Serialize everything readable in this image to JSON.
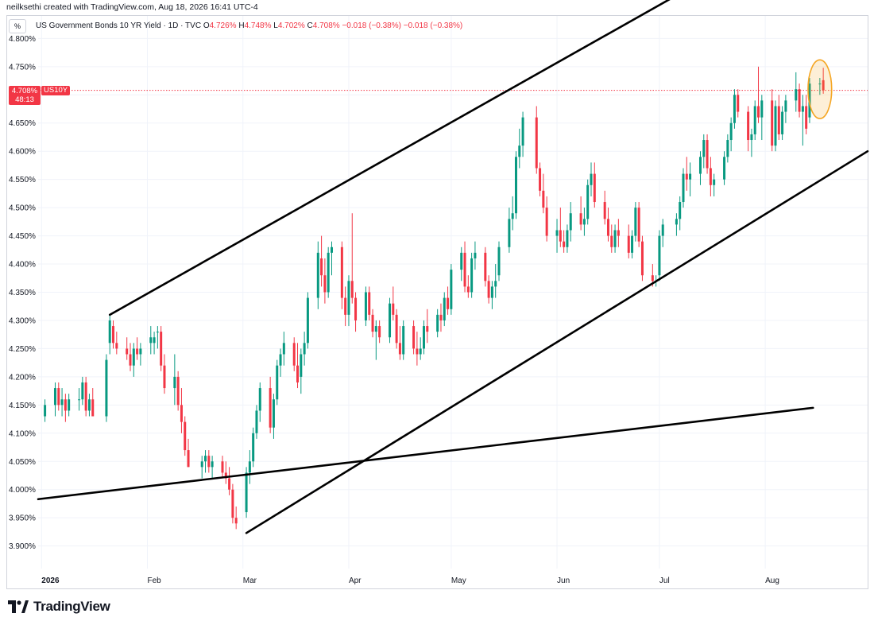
{
  "header": {
    "credit": "neilksethi created with TradingView.com, Aug 18, 2026 16:41 UTC-4"
  },
  "unit_label": "%",
  "legend": {
    "title": "US Government Bonds 10 YR Yield · 1D · TVC",
    "o_key": "O",
    "o_val": "4.726%",
    "h_key": "H",
    "h_val": "4.748%",
    "l_key": "L",
    "l_val": "4.702%",
    "c_key": "C",
    "c_val": "4.708%",
    "chg1": "−0.018 (−0.38%)",
    "chg2": "−0.018 (−0.38%)"
  },
  "price_tag": {
    "value": "4.708%",
    "countdown": "48:13",
    "symbol": "US10Y",
    "level": 4.708
  },
  "footer": {
    "brand": "TradingView"
  },
  "colors": {
    "up": "#089981",
    "down": "#f23645",
    "highlight": "#f5a623",
    "line": "#000000",
    "grid": "#f0f3fa"
  },
  "chart_data": {
    "type": "candlestick",
    "y_ticks": [
      "4.800%",
      "4.750%",
      "4.700%",
      "4.650%",
      "4.600%",
      "4.550%",
      "4.500%",
      "4.450%",
      "4.400%",
      "4.350%",
      "4.300%",
      "4.250%",
      "4.200%",
      "4.150%",
      "4.100%",
      "4.050%",
      "4.000%",
      "3.950%",
      "3.900%"
    ],
    "y_tick_values": [
      4.8,
      4.75,
      4.7,
      4.65,
      4.6,
      4.55,
      4.5,
      4.45,
      4.4,
      4.35,
      4.3,
      4.25,
      4.2,
      4.15,
      4.1,
      4.05,
      4.0,
      3.95,
      3.9
    ],
    "ylim": [
      3.86,
      4.84
    ],
    "x_labels": [
      {
        "label": "2026",
        "date": "2026-01-01",
        "bold": true
      },
      {
        "label": "Feb",
        "date": "2026-02-01",
        "bold": false
      },
      {
        "label": "Mar",
        "date": "2026-03-01",
        "bold": false
      },
      {
        "label": "Apr",
        "date": "2026-04-01",
        "bold": false
      },
      {
        "label": "May",
        "date": "2026-05-01",
        "bold": false
      },
      {
        "label": "Jun",
        "date": "2026-06-01",
        "bold": false
      },
      {
        "label": "Jul",
        "date": "2026-07-01",
        "bold": false
      },
      {
        "label": "Aug",
        "date": "2026-08-01",
        "bold": false
      }
    ],
    "xlim": [
      "2025-12-31",
      "2026-08-31"
    ],
    "candles": [
      [
        "2026-01-02",
        4.13,
        4.16,
        4.12,
        4.15
      ],
      [
        "2026-01-05",
        4.15,
        4.19,
        4.13,
        4.18
      ],
      [
        "2026-01-06",
        4.18,
        4.19,
        4.14,
        4.15
      ],
      [
        "2026-01-07",
        4.15,
        4.18,
        4.13,
        4.16
      ],
      [
        "2026-01-08",
        4.16,
        4.17,
        4.12,
        4.14
      ],
      [
        "2026-01-09",
        4.14,
        4.17,
        4.13,
        4.16
      ],
      [
        "2026-01-12",
        4.16,
        4.18,
        4.14,
        4.16
      ],
      [
        "2026-01-13",
        4.16,
        4.2,
        4.15,
        4.19
      ],
      [
        "2026-01-14",
        4.19,
        4.2,
        4.13,
        4.14
      ],
      [
        "2026-01-15",
        4.14,
        4.17,
        4.13,
        4.16
      ],
      [
        "2026-01-16",
        4.16,
        4.18,
        4.13,
        4.13
      ],
      [
        "2026-01-20",
        4.13,
        4.24,
        4.12,
        4.23
      ],
      [
        "2026-01-21",
        4.26,
        4.31,
        4.24,
        4.3
      ],
      [
        "2026-01-22",
        4.29,
        4.3,
        4.25,
        4.26
      ],
      [
        "2026-01-23",
        4.26,
        4.28,
        4.24,
        4.25
      ],
      [
        "2026-01-26",
        4.25,
        4.27,
        4.23,
        4.24
      ],
      [
        "2026-01-27",
        4.24,
        4.26,
        4.21,
        4.22
      ],
      [
        "2026-01-28",
        4.22,
        4.26,
        4.2,
        4.25
      ],
      [
        "2026-01-29",
        4.25,
        4.27,
        4.23,
        4.24
      ],
      [
        "2026-01-30",
        4.24,
        4.26,
        4.22,
        4.25
      ],
      [
        "2026-02-02",
        4.26,
        4.29,
        4.24,
        4.27
      ],
      [
        "2026-02-03",
        4.26,
        4.28,
        4.24,
        4.27
      ],
      [
        "2026-02-04",
        4.28,
        4.29,
        4.25,
        4.28
      ],
      [
        "2026-02-05",
        4.28,
        4.29,
        4.21,
        4.22
      ],
      [
        "2026-02-06",
        4.22,
        4.24,
        4.17,
        4.18
      ],
      [
        "2026-02-09",
        4.18,
        4.24,
        4.15,
        4.2
      ],
      [
        "2026-02-10",
        4.2,
        4.21,
        4.14,
        4.15
      ],
      [
        "2026-02-11",
        4.15,
        4.18,
        4.1,
        4.12
      ],
      [
        "2026-02-12",
        4.12,
        4.13,
        4.06,
        4.07
      ],
      [
        "2026-02-13",
        4.07,
        4.09,
        4.04,
        4.04
      ],
      [
        "2026-02-17",
        4.04,
        4.06,
        4.02,
        4.05
      ],
      [
        "2026-02-18",
        4.05,
        4.07,
        4.03,
        4.06
      ],
      [
        "2026-02-19",
        4.06,
        4.07,
        4.03,
        4.04
      ],
      [
        "2026-02-20",
        4.04,
        4.06,
        4.02,
        4.05
      ],
      [
        "2026-02-23",
        4.05,
        4.06,
        4.02,
        4.03
      ],
      [
        "2026-02-24",
        4.03,
        4.05,
        4.01,
        4.02
      ],
      [
        "2026-02-25",
        4.02,
        4.04,
        3.99,
        4.0
      ],
      [
        "2026-02-26",
        4.0,
        4.01,
        3.94,
        3.95
      ],
      [
        "2026-02-27",
        3.95,
        3.97,
        3.93,
        3.94
      ],
      [
        "2026-03-02",
        3.96,
        4.04,
        3.95,
        4.03
      ],
      [
        "2026-03-03",
        4.03,
        4.07,
        4.01,
        4.05
      ],
      [
        "2026-03-04",
        4.05,
        4.11,
        4.04,
        4.1
      ],
      [
        "2026-03-05",
        4.1,
        4.15,
        4.09,
        4.14
      ],
      [
        "2026-03-06",
        4.14,
        4.19,
        4.12,
        4.18
      ],
      [
        "2026-03-09",
        4.18,
        4.2,
        4.1,
        4.11
      ],
      [
        "2026-03-10",
        4.11,
        4.17,
        4.09,
        4.16
      ],
      [
        "2026-03-11",
        4.16,
        4.23,
        4.15,
        4.22
      ],
      [
        "2026-03-12",
        4.22,
        4.25,
        4.2,
        4.24
      ],
      [
        "2026-03-13",
        4.24,
        4.28,
        4.22,
        4.26
      ],
      [
        "2026-03-16",
        4.26,
        4.27,
        4.21,
        4.22
      ],
      [
        "2026-03-17",
        4.22,
        4.26,
        4.18,
        4.19
      ],
      [
        "2026-03-18",
        4.2,
        4.25,
        4.17,
        4.24
      ],
      [
        "2026-03-19",
        4.24,
        4.28,
        4.22,
        4.26
      ],
      [
        "2026-03-20",
        4.26,
        4.35,
        4.25,
        4.34
      ],
      [
        "2026-03-23",
        4.34,
        4.44,
        4.32,
        4.42
      ],
      [
        "2026-03-24",
        4.41,
        4.45,
        4.36,
        4.38
      ],
      [
        "2026-03-25",
        4.38,
        4.41,
        4.33,
        4.35
      ],
      [
        "2026-03-26",
        4.35,
        4.43,
        4.34,
        4.42
      ],
      [
        "2026-03-27",
        4.42,
        4.44,
        4.38,
        4.43
      ],
      [
        "2026-03-30",
        4.43,
        4.44,
        4.32,
        4.34
      ],
      [
        "2026-03-31",
        4.34,
        4.36,
        4.29,
        4.31
      ],
      [
        "2026-04-01",
        4.31,
        4.38,
        4.29,
        4.37
      ],
      [
        "2026-04-02",
        4.37,
        4.49,
        4.33,
        4.34
      ],
      [
        "2026-04-03",
        4.34,
        4.35,
        4.28,
        4.3
      ],
      [
        "2026-04-06",
        4.3,
        4.36,
        4.29,
        4.35
      ],
      [
        "2026-04-07",
        4.35,
        4.36,
        4.3,
        4.31
      ],
      [
        "2026-04-08",
        4.31,
        4.32,
        4.27,
        4.28
      ],
      [
        "2026-04-09",
        4.28,
        4.3,
        4.23,
        4.29
      ],
      [
        "2026-04-10",
        4.29,
        4.3,
        4.26,
        4.27
      ],
      [
        "2026-04-13",
        4.27,
        4.34,
        4.26,
        4.33
      ],
      [
        "2026-04-14",
        4.33,
        4.36,
        4.3,
        4.31
      ],
      [
        "2026-04-15",
        4.31,
        4.32,
        4.25,
        4.26
      ],
      [
        "2026-04-16",
        4.26,
        4.29,
        4.23,
        4.24
      ],
      [
        "2026-04-17",
        4.24,
        4.3,
        4.23,
        4.29
      ],
      [
        "2026-04-20",
        4.29,
        4.3,
        4.24,
        4.25
      ],
      [
        "2026-04-21",
        4.25,
        4.28,
        4.22,
        4.24
      ],
      [
        "2026-04-22",
        4.24,
        4.27,
        4.23,
        4.25
      ],
      [
        "2026-04-23",
        4.25,
        4.3,
        4.24,
        4.29
      ],
      [
        "2026-04-24",
        4.29,
        4.32,
        4.26,
        4.28
      ],
      [
        "2026-04-27",
        4.28,
        4.32,
        4.27,
        4.31
      ],
      [
        "2026-04-28",
        4.31,
        4.33,
        4.28,
        4.3
      ],
      [
        "2026-04-29",
        4.3,
        4.35,
        4.29,
        4.34
      ],
      [
        "2026-04-30",
        4.34,
        4.36,
        4.31,
        4.32
      ],
      [
        "2026-05-01",
        4.32,
        4.4,
        4.31,
        4.39
      ],
      [
        "2026-05-04",
        4.39,
        4.43,
        4.37,
        4.42
      ],
      [
        "2026-05-05",
        4.42,
        4.44,
        4.35,
        4.36
      ],
      [
        "2026-05-06",
        4.36,
        4.38,
        4.34,
        4.35
      ],
      [
        "2026-05-07",
        4.35,
        4.42,
        4.34,
        4.41
      ],
      [
        "2026-05-08",
        4.41,
        4.44,
        4.39,
        4.42
      ],
      [
        "2026-05-11",
        4.42,
        4.43,
        4.36,
        4.37
      ],
      [
        "2026-05-12",
        4.37,
        4.38,
        4.33,
        4.34
      ],
      [
        "2026-05-13",
        4.34,
        4.37,
        4.32,
        4.36
      ],
      [
        "2026-05-14",
        4.36,
        4.4,
        4.34,
        4.37
      ],
      [
        "2026-05-15",
        4.38,
        4.44,
        4.37,
        4.43
      ],
      [
        "2026-05-18",
        4.43,
        4.5,
        4.42,
        4.48
      ],
      [
        "2026-05-19",
        4.48,
        4.52,
        4.46,
        4.49
      ],
      [
        "2026-05-20",
        4.49,
        4.6,
        4.48,
        4.59
      ],
      [
        "2026-05-21",
        4.59,
        4.64,
        4.57,
        4.61
      ],
      [
        "2026-05-22",
        4.61,
        4.67,
        4.59,
        4.66
      ],
      [
        "2026-05-26",
        4.66,
        4.68,
        4.56,
        4.57
      ],
      [
        "2026-05-27",
        4.57,
        4.58,
        4.52,
        4.53
      ],
      [
        "2026-05-28",
        4.53,
        4.56,
        4.49,
        4.5
      ],
      [
        "2026-05-29",
        4.5,
        4.52,
        4.44,
        4.45
      ],
      [
        "2026-06-01",
        4.45,
        4.48,
        4.42,
        4.46
      ],
      [
        "2026-06-02",
        4.46,
        4.5,
        4.43,
        4.44
      ],
      [
        "2026-06-03",
        4.44,
        4.46,
        4.42,
        4.43
      ],
      [
        "2026-06-04",
        4.43,
        4.47,
        4.42,
        4.46
      ],
      [
        "2026-06-05",
        4.46,
        4.51,
        4.44,
        4.49
      ],
      [
        "2026-06-08",
        4.49,
        4.52,
        4.46,
        4.47
      ],
      [
        "2026-06-09",
        4.47,
        4.5,
        4.45,
        4.48
      ],
      [
        "2026-06-10",
        4.48,
        4.55,
        4.47,
        4.54
      ],
      [
        "2026-06-11",
        4.54,
        4.58,
        4.52,
        4.56
      ],
      [
        "2026-06-12",
        4.56,
        4.58,
        4.5,
        4.51
      ],
      [
        "2026-06-15",
        4.51,
        4.53,
        4.47,
        4.48
      ],
      [
        "2026-06-16",
        4.48,
        4.5,
        4.44,
        4.45
      ],
      [
        "2026-06-17",
        4.45,
        4.47,
        4.42,
        4.43
      ],
      [
        "2026-06-18",
        4.43,
        4.47,
        4.42,
        4.46
      ],
      [
        "2026-06-19",
        4.46,
        4.48,
        4.43,
        4.45
      ],
      [
        "2026-06-22",
        4.45,
        4.47,
        4.41,
        4.42
      ],
      [
        "2026-06-23",
        4.42,
        4.46,
        4.41,
        4.45
      ],
      [
        "2026-06-24",
        4.45,
        4.51,
        4.44,
        4.5
      ],
      [
        "2026-06-25",
        4.5,
        4.51,
        4.43,
        4.44
      ],
      [
        "2026-06-26",
        4.44,
        4.45,
        4.37,
        4.38
      ],
      [
        "2026-06-29",
        4.38,
        4.4,
        4.36,
        4.37
      ],
      [
        "2026-06-30",
        4.37,
        4.38,
        4.36,
        4.37
      ],
      [
        "2026-07-01",
        4.38,
        4.46,
        4.37,
        4.45
      ],
      [
        "2026-07-02",
        4.45,
        4.48,
        4.43,
        4.47
      ],
      [
        "2026-07-06",
        4.47,
        4.49,
        4.45,
        4.48
      ],
      [
        "2026-07-07",
        4.48,
        4.52,
        4.46,
        4.51
      ],
      [
        "2026-07-08",
        4.51,
        4.57,
        4.5,
        4.56
      ],
      [
        "2026-07-09",
        4.56,
        4.59,
        4.53,
        4.55
      ],
      [
        "2026-07-10",
        4.55,
        4.58,
        4.52,
        4.56
      ],
      [
        "2026-07-13",
        4.56,
        4.6,
        4.54,
        4.59
      ],
      [
        "2026-07-14",
        4.59,
        4.63,
        4.57,
        4.62
      ],
      [
        "2026-07-15",
        4.62,
        4.63,
        4.56,
        4.57
      ],
      [
        "2026-07-16",
        4.57,
        4.59,
        4.52,
        4.54
      ],
      [
        "2026-07-17",
        4.54,
        4.56,
        4.52,
        4.55
      ],
      [
        "2026-07-20",
        4.55,
        4.6,
        4.54,
        4.59
      ],
      [
        "2026-07-21",
        4.59,
        4.63,
        4.58,
        4.62
      ],
      [
        "2026-07-22",
        4.62,
        4.66,
        4.6,
        4.65
      ],
      [
        "2026-07-23",
        4.65,
        4.71,
        4.64,
        4.7
      ],
      [
        "2026-07-24",
        4.7,
        4.71,
        4.66,
        4.67
      ],
      [
        "2026-07-27",
        4.67,
        4.68,
        4.6,
        4.62
      ],
      [
        "2026-07-28",
        4.62,
        4.64,
        4.59,
        4.63
      ],
      [
        "2026-07-29",
        4.63,
        4.69,
        4.62,
        4.68
      ],
      [
        "2026-07-30",
        4.68,
        4.75,
        4.65,
        4.66
      ],
      [
        "2026-07-31",
        4.66,
        4.7,
        4.62,
        4.69
      ],
      [
        "2026-08-03",
        4.69,
        4.71,
        4.6,
        4.61
      ],
      [
        "2026-08-04",
        4.61,
        4.69,
        4.6,
        4.68
      ],
      [
        "2026-08-05",
        4.68,
        4.7,
        4.62,
        4.63
      ],
      [
        "2026-08-06",
        4.63,
        4.68,
        4.62,
        4.67
      ],
      [
        "2026-08-07",
        4.67,
        4.7,
        4.65,
        4.69
      ],
      [
        "2026-08-10",
        4.69,
        4.74,
        4.67,
        4.71
      ],
      [
        "2026-08-11",
        4.71,
        4.72,
        4.66,
        4.67
      ],
      [
        "2026-08-12",
        4.67,
        4.7,
        4.61,
        4.68
      ],
      [
        "2026-08-13",
        4.68,
        4.7,
        4.63,
        4.64
      ],
      [
        "2026-08-14",
        4.66,
        4.73,
        4.65,
        4.72
      ],
      [
        "2026-08-17",
        4.72,
        4.73,
        4.7,
        4.72
      ],
      [
        "2026-08-18",
        4.726,
        4.748,
        4.702,
        4.708
      ]
    ],
    "trendlines": [
      {
        "name": "channel-upper",
        "from": [
          "2026-01-21",
          4.31
        ],
        "to": [
          "2026-07-10",
          4.89
        ]
      },
      {
        "name": "channel-lower",
        "from": [
          "2026-03-02",
          3.923
        ],
        "to": [
          "2026-08-31",
          4.6
        ]
      },
      {
        "name": "long-support",
        "from": [
          "2025-12-31",
          3.983
        ],
        "to": [
          "2026-08-15",
          4.145
        ]
      }
    ],
    "highlight": {
      "center": [
        "2026-08-17",
        4.71
      ],
      "rx_days": 1.6,
      "ry": 0.052
    },
    "current_price_line": 4.708,
    "grid": true
  }
}
